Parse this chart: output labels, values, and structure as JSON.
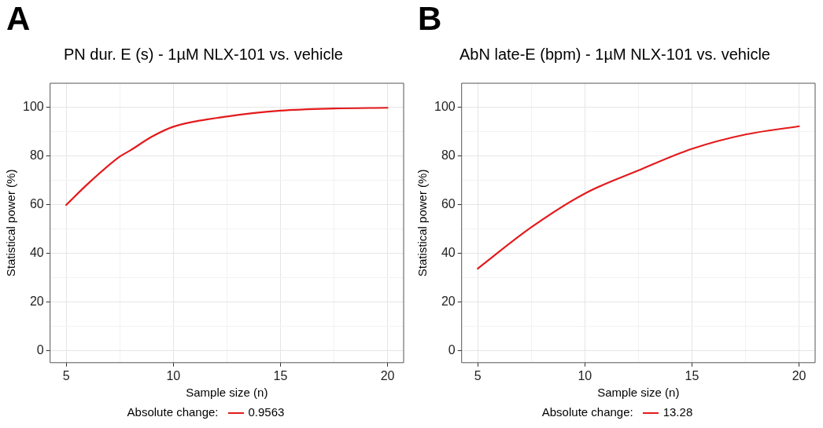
{
  "chart_data": [
    {
      "type": "line",
      "title": "PN dur. E (s) - 1µM NLX-101 vs. vehicle",
      "xlabel": "Sample size (n)",
      "ylabel": "Statistical power (%)",
      "legend_title": "Absolute change:",
      "annotations": [
        "A"
      ],
      "x": [
        5,
        6,
        7.5,
        8,
        9,
        10,
        12.5,
        15,
        17.5,
        20
      ],
      "series": [
        {
          "name": "0.9563",
          "color": "#e41a1c",
          "values": [
            59.9,
            68.5,
            79.8,
            82.4,
            88,
            92.1,
            96.3,
            98.7,
            99.6,
            99.9
          ]
        }
      ],
      "xlim": [
        4.25,
        20.75
      ],
      "xticks": [
        5,
        {
          "value": 7.5,
          "label": null
        },
        10,
        {
          "value": 12.5,
          "label": null
        },
        15,
        {
          "value": 17.5,
          "label": null
        },
        20
      ],
      "ylim": [
        -5,
        110
      ],
      "yticks": [
        0,
        {
          "value": 10,
          "label": null
        },
        20,
        {
          "value": 30,
          "label": null
        },
        40,
        {
          "value": 50,
          "label": null
        },
        60,
        {
          "value": 70,
          "label": null
        },
        80,
        {
          "value": 90,
          "label": null
        },
        100
      ],
      "grid": true,
      "legend": "bottom",
      "marker": "none",
      "line_style": "solid"
    },
    {
      "type": "line",
      "title": "AbN late-E (bpm) - 1µM NLX-101 vs. vehicle",
      "xlabel": "Sample size (n)",
      "ylabel": "Statistical power (%)",
      "legend_title": "Absolute change:",
      "annotations": [
        "B"
      ],
      "x": [
        5,
        7.5,
        10,
        12.5,
        15,
        17.5,
        20
      ],
      "series": [
        {
          "name": "13.28",
          "color": "#e41a1c",
          "values": [
            33.7,
            50.7,
            64.6,
            74.1,
            83.0,
            88.9,
            92.3
          ]
        }
      ],
      "xlim": [
        4.25,
        20.75
      ],
      "xticks": [
        5,
        {
          "value": 7.5,
          "label": null
        },
        10,
        {
          "value": 12.5,
          "label": null
        },
        15,
        {
          "value": 17.5,
          "label": null
        },
        20
      ],
      "ylim": [
        -5,
        110
      ],
      "yticks": [
        0,
        {
          "value": 10,
          "label": null
        },
        20,
        {
          "value": 30,
          "label": null
        },
        40,
        {
          "value": 50,
          "label": null
        },
        60,
        {
          "value": 70,
          "label": null
        },
        80,
        {
          "value": 90,
          "label": null
        },
        100
      ],
      "grid": true,
      "legend": "bottom",
      "marker": "none",
      "line_style": "solid"
    }
  ]
}
